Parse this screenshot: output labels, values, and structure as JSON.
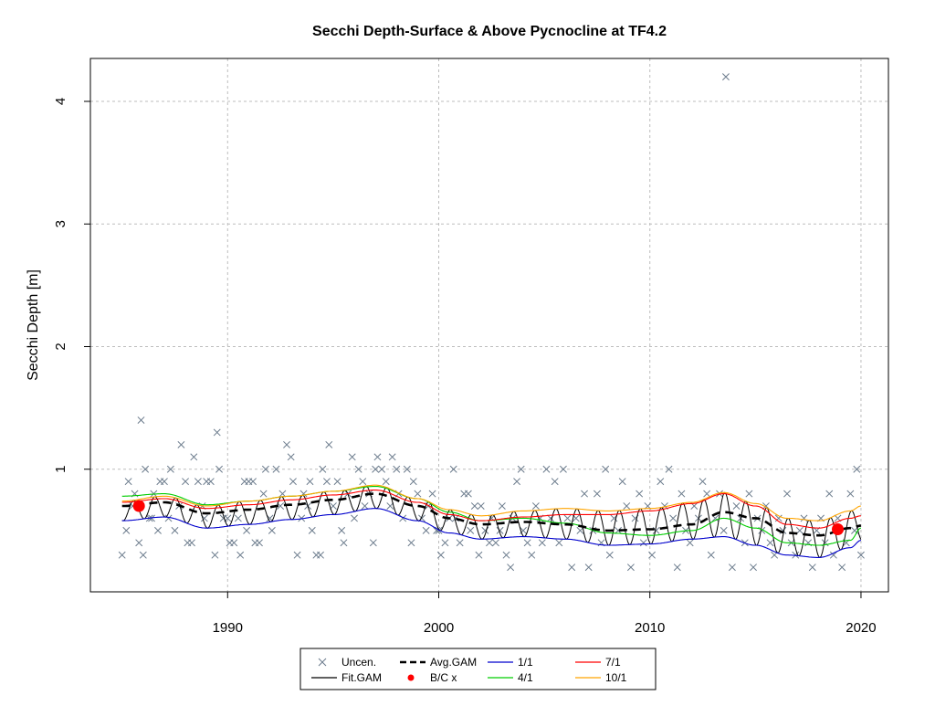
{
  "chart_data": {
    "type": "line",
    "title": "Secchi Depth-Surface & Above Pycnocline at TF4.2",
    "xlabel": "",
    "ylabel": "Secchi Depth [m]",
    "xlim": [
      1983.5,
      2021.3
    ],
    "ylim": [
      0.0,
      4.35
    ],
    "x_ticks": [
      1990,
      2000,
      2010,
      2020
    ],
    "x_tick_labels": [
      "1990",
      "2000",
      "2010",
      "2020"
    ],
    "y_ticks": [
      1,
      2,
      3,
      4
    ],
    "y_tick_labels": [
      "1",
      "2",
      "3",
      "4"
    ],
    "grid": true,
    "legend_position": "bottom-outside",
    "legend": [
      {
        "label": "Uncen.",
        "kind": "cross",
        "color": "#6b7b8c"
      },
      {
        "label": "Avg.GAM",
        "kind": "dash",
        "color": "#000000"
      },
      {
        "label": "1/1",
        "kind": "line",
        "color": "#0000cd"
      },
      {
        "label": "7/1",
        "kind": "line",
        "color": "#ff0000"
      },
      {
        "label": "Fit.GAM",
        "kind": "line",
        "color": "#000000"
      },
      {
        "label": "B/C x",
        "kind": "dot",
        "color": "#ff0000"
      },
      {
        "label": "4/1",
        "kind": "line",
        "color": "#00cd00"
      },
      {
        "label": "10/1",
        "kind": "line",
        "color": "#ffa500"
      }
    ],
    "colors": {
      "observations": "#6b7b8c",
      "fit": "#000000",
      "avg": "#000000",
      "s1_1": "#0000cd",
      "s4_1": "#00cd00",
      "s7_1": "#ff0000",
      "s10_1": "#ffa500",
      "bc": "#ff0000",
      "grid": "#bdbdbd"
    },
    "series": [
      {
        "name": "Avg.GAM",
        "x": [
          1985,
          1987,
          1989,
          1991,
          1993,
          1995,
          1997,
          1999,
          2000.5,
          2002,
          2004,
          2006,
          2008,
          2010,
          2012,
          2013.5,
          2015,
          2016.5,
          2018,
          2019.5,
          2020
        ],
        "y": [
          0.7,
          0.73,
          0.64,
          0.67,
          0.71,
          0.75,
          0.8,
          0.7,
          0.6,
          0.55,
          0.57,
          0.55,
          0.5,
          0.51,
          0.55,
          0.65,
          0.6,
          0.48,
          0.46,
          0.52,
          0.54
        ]
      },
      {
        "name": "1/1",
        "x": [
          1985,
          1987,
          1989,
          1991,
          1993,
          1995,
          1997,
          1999,
          2000.5,
          2002,
          2004,
          2006,
          2008,
          2010,
          2012,
          2013.5,
          2015,
          2016.5,
          2018,
          2019.5,
          2020
        ],
        "y": [
          0.58,
          0.61,
          0.52,
          0.55,
          0.59,
          0.63,
          0.68,
          0.58,
          0.48,
          0.43,
          0.45,
          0.43,
          0.38,
          0.39,
          0.43,
          0.45,
          0.38,
          0.3,
          0.28,
          0.36,
          0.42
        ]
      },
      {
        "name": "4/1",
        "x": [
          1985,
          1987,
          1989,
          1991,
          1993,
          1995,
          1997,
          1999,
          2000.5,
          2002,
          2004,
          2006,
          2008,
          2010,
          2012,
          2013.5,
          2015,
          2016.5,
          2018,
          2019.5,
          2020
        ],
        "y": [
          0.78,
          0.8,
          0.71,
          0.74,
          0.78,
          0.82,
          0.86,
          0.76,
          0.65,
          0.58,
          0.6,
          0.56,
          0.48,
          0.46,
          0.5,
          0.6,
          0.52,
          0.4,
          0.38,
          0.42,
          0.52
        ]
      },
      {
        "name": "7/1",
        "x": [
          1985,
          1987,
          1989,
          1991,
          1993,
          1995,
          1997,
          1999,
          2000.5,
          2002,
          2004,
          2006,
          2008,
          2010,
          2012,
          2013.5,
          2015,
          2016.5,
          2018,
          2019.5,
          2020
        ],
        "y": [
          0.73,
          0.76,
          0.68,
          0.71,
          0.75,
          0.79,
          0.83,
          0.73,
          0.63,
          0.58,
          0.61,
          0.63,
          0.63,
          0.66,
          0.72,
          0.8,
          0.7,
          0.55,
          0.52,
          0.6,
          0.62
        ]
      },
      {
        "name": "10/1",
        "x": [
          1985,
          1987,
          1989,
          1991,
          1993,
          1995,
          1997,
          1999,
          2000.5,
          2002,
          2004,
          2006,
          2008,
          2010,
          2012,
          2013.5,
          2015,
          2016.5,
          2018,
          2019.5,
          2020
        ],
        "y": [
          0.74,
          0.78,
          0.7,
          0.74,
          0.78,
          0.82,
          0.87,
          0.76,
          0.67,
          0.62,
          0.66,
          0.68,
          0.66,
          0.68,
          0.73,
          0.81,
          0.72,
          0.6,
          0.58,
          0.66,
          0.7
        ]
      }
    ],
    "fit_gam": {
      "amplitude_note": "seasonal oscillation between the 1/1 and 10/1 curves",
      "x_start": 1985,
      "x_end": 2020
    },
    "bc_points": [
      {
        "x": 1985.8,
        "y": 0.7
      },
      {
        "x": 2018.9,
        "y": 0.51
      }
    ],
    "observations": [
      [
        1985.0,
        0.3
      ],
      [
        1985.2,
        0.5
      ],
      [
        1985.3,
        0.9
      ],
      [
        1985.5,
        0.7
      ],
      [
        1985.6,
        0.8
      ],
      [
        1985.8,
        0.4
      ],
      [
        1985.9,
        1.4
      ],
      [
        1986.0,
        0.3
      ],
      [
        1986.1,
        1.0
      ],
      [
        1986.3,
        0.6
      ],
      [
        1986.4,
        0.6
      ],
      [
        1986.5,
        0.8
      ],
      [
        1986.7,
        0.5
      ],
      [
        1986.8,
        0.9
      ],
      [
        1987.0,
        0.9
      ],
      [
        1987.2,
        0.6
      ],
      [
        1987.3,
        1.0
      ],
      [
        1987.5,
        0.5
      ],
      [
        1987.7,
        0.7
      ],
      [
        1987.8,
        1.2
      ],
      [
        1988.0,
        0.9
      ],
      [
        1988.1,
        0.4
      ],
      [
        1988.3,
        0.4
      ],
      [
        1988.4,
        1.1
      ],
      [
        1988.6,
        0.9
      ],
      [
        1988.8,
        0.7
      ],
      [
        1988.9,
        0.6
      ],
      [
        1989.0,
        0.9
      ],
      [
        1989.2,
        0.9
      ],
      [
        1989.4,
        0.3
      ],
      [
        1989.5,
        1.3
      ],
      [
        1989.6,
        1.0
      ],
      [
        1989.8,
        0.6
      ],
      [
        1990.0,
        0.6
      ],
      [
        1990.1,
        0.4
      ],
      [
        1990.3,
        0.4
      ],
      [
        1990.5,
        0.6
      ],
      [
        1990.6,
        0.3
      ],
      [
        1990.8,
        0.9
      ],
      [
        1990.9,
        0.5
      ],
      [
        1991.0,
        0.9
      ],
      [
        1991.2,
        0.9
      ],
      [
        1991.3,
        0.4
      ],
      [
        1991.5,
        0.4
      ],
      [
        1991.7,
        0.8
      ],
      [
        1991.8,
        1.0
      ],
      [
        1992.0,
        0.6
      ],
      [
        1992.1,
        0.5
      ],
      [
        1992.3,
        1.0
      ],
      [
        1992.5,
        0.7
      ],
      [
        1992.6,
        0.8
      ],
      [
        1992.8,
        1.2
      ],
      [
        1993.0,
        1.1
      ],
      [
        1993.1,
        0.9
      ],
      [
        1993.3,
        0.3
      ],
      [
        1993.5,
        0.6
      ],
      [
        1993.6,
        0.8
      ],
      [
        1993.8,
        0.7
      ],
      [
        1993.9,
        0.9
      ],
      [
        1994.0,
        0.5
      ],
      [
        1994.2,
        0.3
      ],
      [
        1994.4,
        0.3
      ],
      [
        1994.5,
        1.0
      ],
      [
        1994.7,
        0.9
      ],
      [
        1994.8,
        1.2
      ],
      [
        1995.0,
        0.7
      ],
      [
        1995.2,
        0.9
      ],
      [
        1995.4,
        0.5
      ],
      [
        1995.5,
        0.4
      ],
      [
        1995.7,
        0.8
      ],
      [
        1995.9,
        1.1
      ],
      [
        1996.0,
        0.6
      ],
      [
        1996.2,
        1.0
      ],
      [
        1996.4,
        0.9
      ],
      [
        1996.5,
        0.7
      ],
      [
        1996.7,
        0.8
      ],
      [
        1996.9,
        0.4
      ],
      [
        1997.0,
        1.0
      ],
      [
        1997.1,
        1.1
      ],
      [
        1997.3,
        1.0
      ],
      [
        1997.5,
        0.9
      ],
      [
        1997.7,
        0.7
      ],
      [
        1997.8,
        1.1
      ],
      [
        1998.0,
        1.0
      ],
      [
        1998.1,
        0.8
      ],
      [
        1998.3,
        0.6
      ],
      [
        1998.5,
        1.0
      ],
      [
        1998.7,
        0.4
      ],
      [
        1998.8,
        0.9
      ],
      [
        1999.0,
        0.8
      ],
      [
        1999.2,
        0.6
      ],
      [
        1999.4,
        0.5
      ],
      [
        1999.5,
        0.7
      ],
      [
        1999.7,
        0.8
      ],
      [
        1999.9,
        0.5
      ],
      [
        2000.0,
        0.5
      ],
      [
        2000.1,
        0.3
      ],
      [
        2000.3,
        0.4
      ],
      [
        2000.5,
        0.6
      ],
      [
        2000.7,
        1.0
      ],
      [
        2000.8,
        0.6
      ],
      [
        2001.0,
        0.4
      ],
      [
        2001.2,
        0.8
      ],
      [
        2001.4,
        0.8
      ],
      [
        2001.5,
        0.5
      ],
      [
        2001.7,
        0.7
      ],
      [
        2001.9,
        0.3
      ],
      [
        2002.0,
        0.7
      ],
      [
        2002.2,
        0.5
      ],
      [
        2002.4,
        0.4
      ],
      [
        2002.5,
        0.6
      ],
      [
        2002.7,
        0.4
      ],
      [
        2002.9,
        0.5
      ],
      [
        2003.0,
        0.7
      ],
      [
        2003.2,
        0.3
      ],
      [
        2003.4,
        0.2
      ],
      [
        2003.5,
        0.6
      ],
      [
        2003.7,
        0.9
      ],
      [
        2003.9,
        1.0
      ],
      [
        2004.0,
        0.5
      ],
      [
        2004.2,
        0.4
      ],
      [
        2004.4,
        0.3
      ],
      [
        2004.6,
        0.7
      ],
      [
        2004.8,
        0.6
      ],
      [
        2004.9,
        0.4
      ],
      [
        2005.1,
        1.0
      ],
      [
        2005.3,
        0.6
      ],
      [
        2005.5,
        0.9
      ],
      [
        2005.7,
        0.4
      ],
      [
        2005.9,
        1.0
      ],
      [
        2006.1,
        0.6
      ],
      [
        2006.3,
        0.2
      ],
      [
        2006.5,
        0.6
      ],
      [
        2006.7,
        0.5
      ],
      [
        2006.9,
        0.8
      ],
      [
        2007.1,
        0.2
      ],
      [
        2007.3,
        0.5
      ],
      [
        2007.5,
        0.8
      ],
      [
        2007.7,
        0.4
      ],
      [
        2007.9,
        1.0
      ],
      [
        2008.1,
        0.3
      ],
      [
        2008.3,
        0.6
      ],
      [
        2008.5,
        0.5
      ],
      [
        2008.7,
        0.9
      ],
      [
        2008.9,
        0.7
      ],
      [
        2009.1,
        0.2
      ],
      [
        2009.3,
        0.6
      ],
      [
        2009.5,
        0.8
      ],
      [
        2009.7,
        0.4
      ],
      [
        2009.9,
        0.7
      ],
      [
        2010.1,
        0.3
      ],
      [
        2010.3,
        0.5
      ],
      [
        2010.5,
        0.9
      ],
      [
        2010.7,
        0.7
      ],
      [
        2010.9,
        1.0
      ],
      [
        2011.1,
        0.6
      ],
      [
        2011.3,
        0.2
      ],
      [
        2011.5,
        0.8
      ],
      [
        2011.7,
        0.5
      ],
      [
        2011.9,
        0.4
      ],
      [
        2012.1,
        0.7
      ],
      [
        2012.3,
        0.6
      ],
      [
        2012.5,
        0.9
      ],
      [
        2012.7,
        0.8
      ],
      [
        2012.9,
        0.3
      ],
      [
        2013.1,
        0.6
      ],
      [
        2013.3,
        0.8
      ],
      [
        2013.5,
        0.5
      ],
      [
        2013.6,
        4.2
      ],
      [
        2013.9,
        0.2
      ],
      [
        2014.1,
        0.7
      ],
      [
        2014.3,
        0.6
      ],
      [
        2014.5,
        0.4
      ],
      [
        2014.7,
        0.8
      ],
      [
        2014.9,
        0.2
      ],
      [
        2015.1,
        0.6
      ],
      [
        2015.3,
        0.5
      ],
      [
        2015.5,
        0.7
      ],
      [
        2015.7,
        0.4
      ],
      [
        2015.9,
        0.3
      ],
      [
        2016.1,
        0.6
      ],
      [
        2016.3,
        0.5
      ],
      [
        2016.5,
        0.8
      ],
      [
        2016.7,
        0.4
      ],
      [
        2016.9,
        0.3
      ],
      [
        2017.1,
        0.5
      ],
      [
        2017.3,
        0.6
      ],
      [
        2017.5,
        0.4
      ],
      [
        2017.7,
        0.2
      ],
      [
        2017.9,
        0.5
      ],
      [
        2018.1,
        0.6
      ],
      [
        2018.3,
        0.4
      ],
      [
        2018.5,
        0.8
      ],
      [
        2018.7,
        0.3
      ],
      [
        2018.9,
        0.6
      ],
      [
        2019.1,
        0.2
      ],
      [
        2019.3,
        0.4
      ],
      [
        2019.5,
        0.8
      ],
      [
        2019.7,
        0.5
      ],
      [
        2019.8,
        1.0
      ],
      [
        2020.0,
        0.3
      ]
    ]
  }
}
